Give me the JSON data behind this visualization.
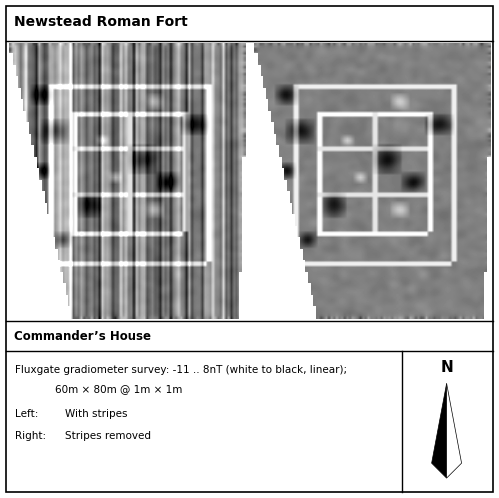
{
  "title": "Newstead Roman Fort",
  "subtitle": "Commander’s House",
  "survey_line1": "Fluxgate gradiometer survey: -11 .. 8nT (white to black, linear);",
  "survey_line2": "60m × 80m @ 1m × 1m",
  "left_label": "Left:",
  "left_desc": "With stripes",
  "right_label": "Right:",
  "right_desc": "Stripes removed",
  "north_label": "N",
  "title_fontsize": 10,
  "text_fontsize": 7.5,
  "subtitle_fontsize": 8.5
}
